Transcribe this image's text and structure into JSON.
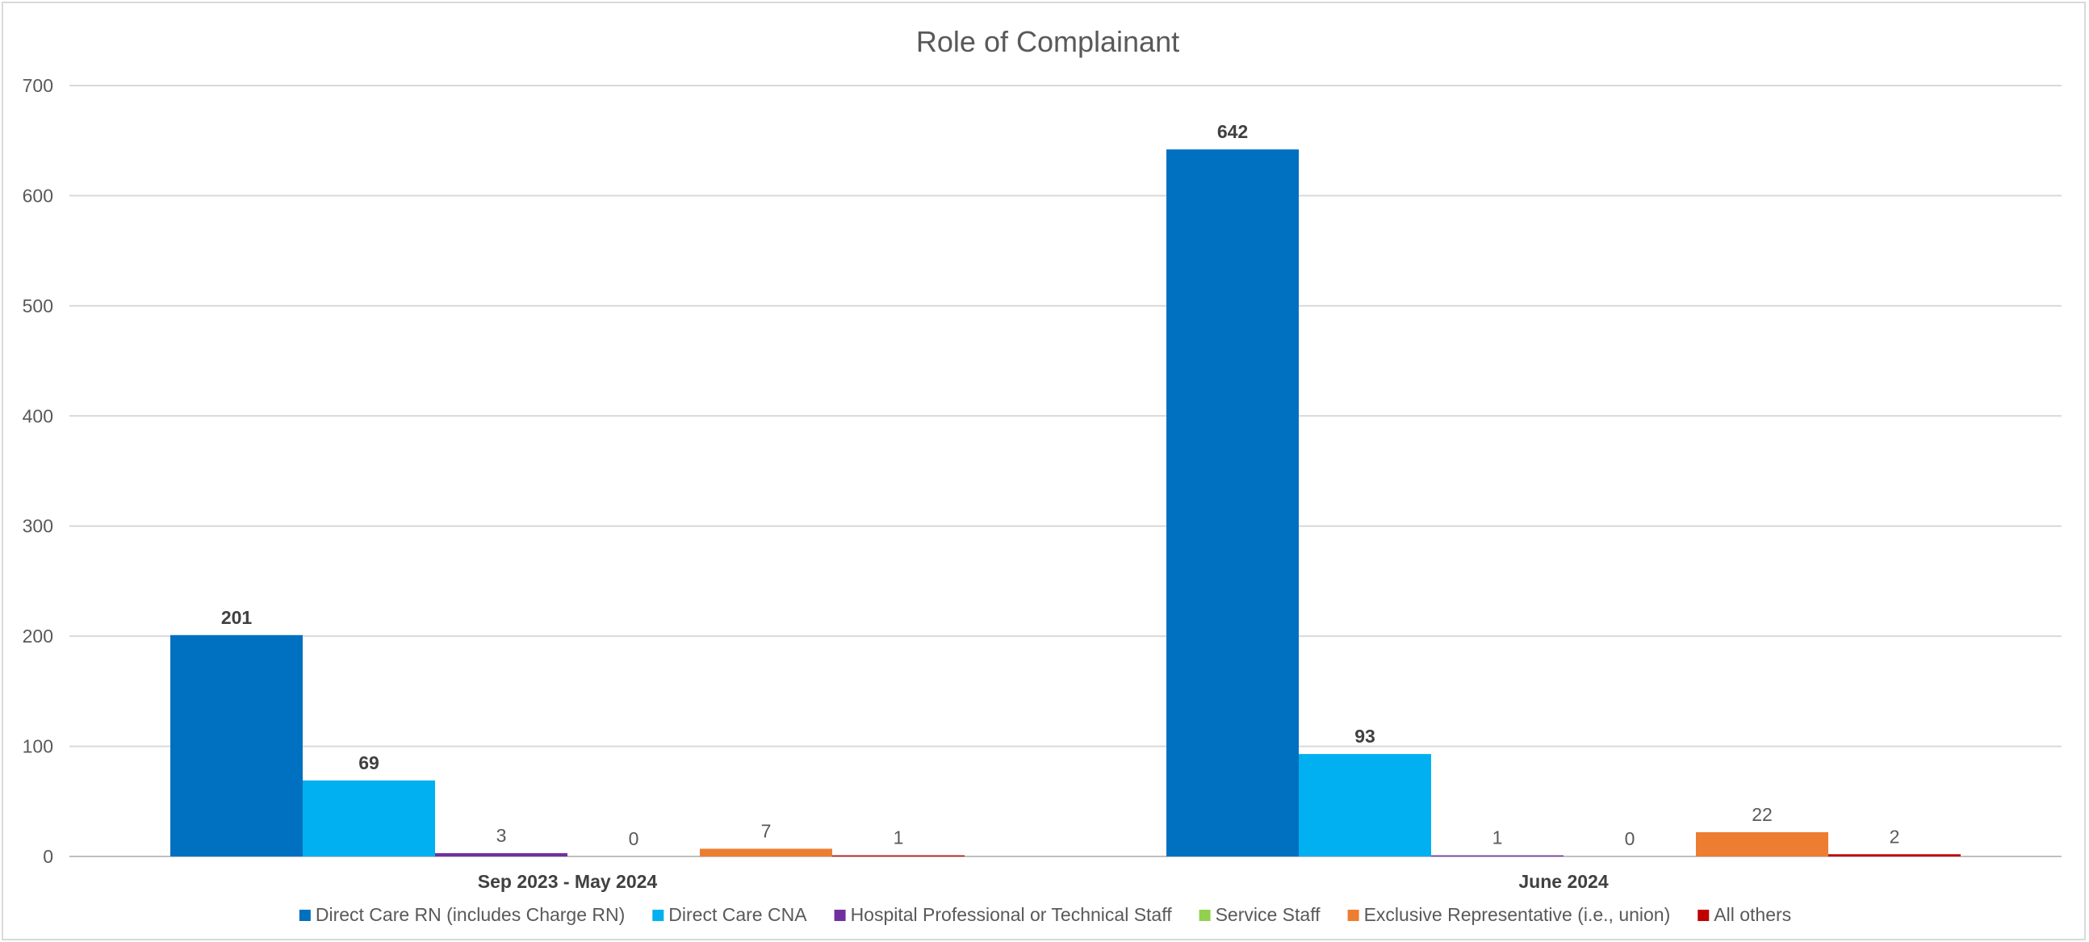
{
  "chart_data": {
    "type": "bar",
    "title": "Role of Complainant",
    "xlabel": "",
    "ylabel": "",
    "ylim": [
      0,
      700
    ],
    "yticks": [
      0,
      100,
      200,
      300,
      400,
      500,
      600,
      700
    ],
    "grid": true,
    "legend_position": "bottom",
    "categories": [
      "Sep 2023 - May 2024",
      "June 2024"
    ],
    "series": [
      {
        "name": "Direct Care RN (includes Charge RN)",
        "values": [
          201,
          642
        ],
        "color": "#0070c0",
        "label_bold": true
      },
      {
        "name": "Direct Care CNA",
        "values": [
          69,
          93
        ],
        "color": "#00b0f0",
        "label_bold": true
      },
      {
        "name": "Hospital Professional or Technical Staff",
        "values": [
          3,
          1
        ],
        "color": "#7030a0",
        "label_bold": false
      },
      {
        "name": "Service Staff",
        "values": [
          0,
          0
        ],
        "color": "#92d050",
        "label_bold": false
      },
      {
        "name": "Exclusive Representative (i.e., union)",
        "values": [
          7,
          22
        ],
        "color": "#ed7d31",
        "label_bold": false
      },
      {
        "name": "All others",
        "values": [
          1,
          2
        ],
        "color": "#c00000",
        "label_bold": false
      }
    ],
    "colors": {
      "grid": "#d9d9d9",
      "axis": "#bfbfbf"
    }
  }
}
